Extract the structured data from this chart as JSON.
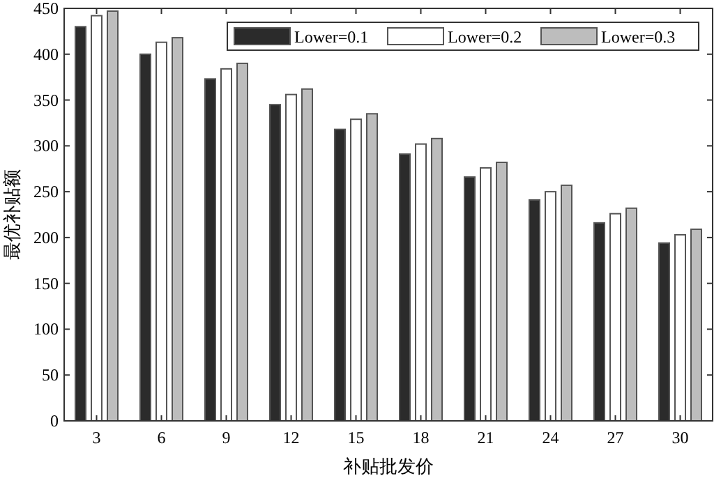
{
  "chart_data": {
    "type": "bar",
    "xlabel": "补贴批发价",
    "ylabel": "最优补贴额",
    "categories": [
      "3",
      "6",
      "9",
      "12",
      "15",
      "18",
      "21",
      "24",
      "27",
      "30"
    ],
    "series": [
      {
        "name": "Lower=0.1",
        "color": "#2b2b2b",
        "values": [
          430,
          400,
          373,
          345,
          318,
          291,
          266,
          241,
          216,
          194
        ]
      },
      {
        "name": "Lower=0.2",
        "color": "#ffffff",
        "values": [
          442,
          413,
          384,
          356,
          329,
          302,
          276,
          250,
          226,
          203
        ]
      },
      {
        "name": "Lower=0.3",
        "color": "#bdbdbd",
        "values": [
          447,
          418,
          390,
          362,
          335,
          308,
          282,
          257,
          232,
          209
        ]
      }
    ],
    "ylim": [
      0,
      450
    ],
    "yticks": [
      0,
      50,
      100,
      150,
      200,
      250,
      300,
      350,
      400,
      450
    ],
    "legend": "top right",
    "grid": false
  }
}
